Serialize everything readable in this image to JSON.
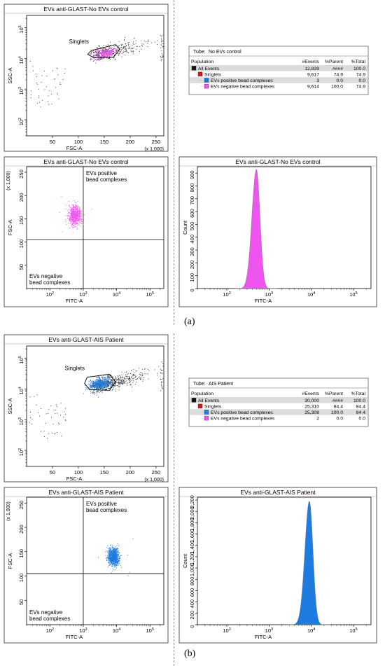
{
  "letters": {
    "a": "(a)",
    "b": "(b)"
  },
  "colors": {
    "pink": "#ee55ee",
    "blue": "#1e7be0",
    "black": "#111111",
    "red": "#dd1111",
    "rowhi": "#dcdcdc"
  },
  "chart_data": [
    {
      "type": "scatter",
      "title": "EVs anti-GLAST-No EVs control",
      "xlabel": "FSC-A",
      "ylabel": "SSC-A",
      "x_scale": "linear",
      "y_scale": "log",
      "xlim": [
        0,
        265
      ],
      "ylim": [
        30,
        250000
      ],
      "x_ticks": [
        "50",
        "100",
        "150",
        "200",
        "250"
      ],
      "x_multiplier": "(x 1,000)",
      "y_ticks": [
        "10^2",
        "10^3",
        "10^4",
        "10^5"
      ],
      "gate_label": "Singlets",
      "gate": [
        [
          125,
          18000
        ],
        [
          172,
          28000
        ],
        [
          180,
          20000
        ],
        [
          168,
          11000
        ],
        [
          130,
          10500
        ],
        [
          118,
          13500
        ]
      ],
      "gated_population": {
        "name": "Singlets",
        "center": [
          150,
          15000
        ],
        "spread": [
          11,
          0.1
        ],
        "color": "pink"
      }
    },
    {
      "type": "table",
      "tube_label": "Tube:",
      "tube": "No EVs control",
      "columns": [
        "Population",
        "#Events",
        "%Parent",
        "%Total"
      ],
      "rows": [
        {
          "name": "All Events",
          "events": "12,839",
          "parent": "####",
          "total": "100.0",
          "swatch": "black",
          "indent": 0
        },
        {
          "name": "Singlets",
          "events": "9,617",
          "parent": "74.9",
          "total": "74.9",
          "swatch": "red",
          "indent": 1
        },
        {
          "name": "EVs positive bead complexes",
          "events": "3",
          "parent": "0.0",
          "total": "0.0",
          "swatch": "blue",
          "indent": 2
        },
        {
          "name": "EVs negative bead complexes",
          "events": "9,614",
          "parent": "100.0",
          "total": "74.9",
          "swatch": "pink",
          "indent": 2
        }
      ]
    },
    {
      "type": "scatter",
      "title": "EVs anti-GLAST-No EVs control",
      "xlabel": "FITC-A",
      "ylabel": "FSC-A",
      "x_scale": "log",
      "y_scale": "linear",
      "xlim": [
        20,
        260000
      ],
      "ylim": [
        0,
        262
      ],
      "x_ticks": [
        "10^2",
        "10^3",
        "10^4",
        "10^5"
      ],
      "y_ticks": [
        "50",
        "100",
        "150",
        "200",
        "250"
      ],
      "y_multiplier": "(x 1,000)",
      "quadrant": {
        "x": 1000,
        "y": 105
      },
      "quadrant_labels": {
        "upper_right": [
          "EVs positive",
          "bead complexes"
        ],
        "lower_left": [
          "EVs negative",
          "bead complexes"
        ]
      },
      "population": {
        "center": [
          550,
          158
        ],
        "spread": [
          0.12,
          12
        ],
        "color": "pink"
      }
    },
    {
      "type": "histogram",
      "title": "EVs anti-GLAST-No EVs control",
      "xlabel": "FITC-A",
      "ylabel": "Count",
      "x_scale": "log",
      "xlim": [
        20,
        260000
      ],
      "ylim": [
        0,
        950
      ],
      "x_ticks": [
        "10^2",
        "10^3",
        "10^4",
        "10^5"
      ],
      "y_ticks": [
        "0",
        "100",
        "200",
        "300",
        "400",
        "500",
        "600",
        "700",
        "800",
        "900"
      ],
      "peak": {
        "x": 500,
        "height": 930,
        "width_log": 0.085
      },
      "color": "pink"
    },
    {
      "type": "scatter",
      "title": "EVs anti-GLAST-AIS Patient",
      "xlabel": "FSC-A",
      "ylabel": "SSC-A",
      "x_scale": "linear",
      "y_scale": "log",
      "xlim": [
        0,
        265
      ],
      "ylim": [
        30,
        250000
      ],
      "x_ticks": [
        "50",
        "100",
        "150",
        "200",
        "250"
      ],
      "x_multiplier": "(x 1,000)",
      "y_ticks": [
        "10^2",
        "10^3",
        "10^4",
        "10^5"
      ],
      "gate_label": "Singlets",
      "gate": [
        [
          117,
          24000
        ],
        [
          160,
          30000
        ],
        [
          172,
          17000
        ],
        [
          160,
          9000
        ],
        [
          122,
          9500
        ],
        [
          112,
          15000
        ]
      ],
      "gated_population": {
        "name": "Singlets",
        "center": [
          142,
          15000
        ],
        "spread": [
          13,
          0.11
        ],
        "color": "blue"
      }
    },
    {
      "type": "table",
      "tube_label": "Tube:",
      "tube": "AIS Patient",
      "columns": [
        "Population",
        "#Events",
        "%Parent",
        "%Total"
      ],
      "rows": [
        {
          "name": "All Events",
          "events": "30,000",
          "parent": "####",
          "total": "100.0",
          "swatch": "black",
          "indent": 0
        },
        {
          "name": "Singlets",
          "events": "25,310",
          "parent": "84.4",
          "total": "84.4",
          "swatch": "red",
          "indent": 1
        },
        {
          "name": "EVs positive bead complexes",
          "events": "25,308",
          "parent": "100.0",
          "total": "84.4",
          "swatch": "blue",
          "indent": 2
        },
        {
          "name": "EVs negative bead complexes",
          "events": "2",
          "parent": "0.0",
          "total": "0.0",
          "swatch": "pink",
          "indent": 2
        }
      ]
    },
    {
      "type": "scatter",
      "title": "EVs anti-GLAST-AIS Patient",
      "xlabel": "FITC-A",
      "ylabel": "FSC-A",
      "x_scale": "log",
      "y_scale": "linear",
      "xlim": [
        20,
        260000
      ],
      "ylim": [
        0,
        262
      ],
      "x_ticks": [
        "10^2",
        "10^3",
        "10^4",
        "10^5"
      ],
      "y_ticks": [
        "50",
        "100",
        "150",
        "200",
        "250"
      ],
      "y_multiplier": "(x 1,000)",
      "quadrant": {
        "x": 1000,
        "y": 105
      },
      "quadrant_labels": {
        "upper_right": [
          "EVs positive",
          "bead complexes"
        ],
        "lower_left": [
          "EVs negative",
          "bead complexes"
        ]
      },
      "population": {
        "center": [
          7800,
          140
        ],
        "spread": [
          0.1,
          11
        ],
        "color": "blue"
      }
    },
    {
      "type": "histogram",
      "title": "EVs anti-GLAST-AIS Patient",
      "xlabel": "FITC-A",
      "ylabel": "Count",
      "x_scale": "log",
      "xlim": [
        20,
        260000
      ],
      "ylim": [
        0,
        2250
      ],
      "x_ticks": [
        "10^2",
        "10^3",
        "10^4",
        "10^5"
      ],
      "y_ticks": [
        "0",
        "200",
        "400",
        "600",
        "800",
        "1,000",
        "1,200",
        "1,400",
        "1,600",
        "1,800",
        "2,000",
        "2,200"
      ],
      "peak": {
        "x": 9000,
        "height": 2180,
        "width_log": 0.085
      },
      "color": "blue"
    }
  ]
}
